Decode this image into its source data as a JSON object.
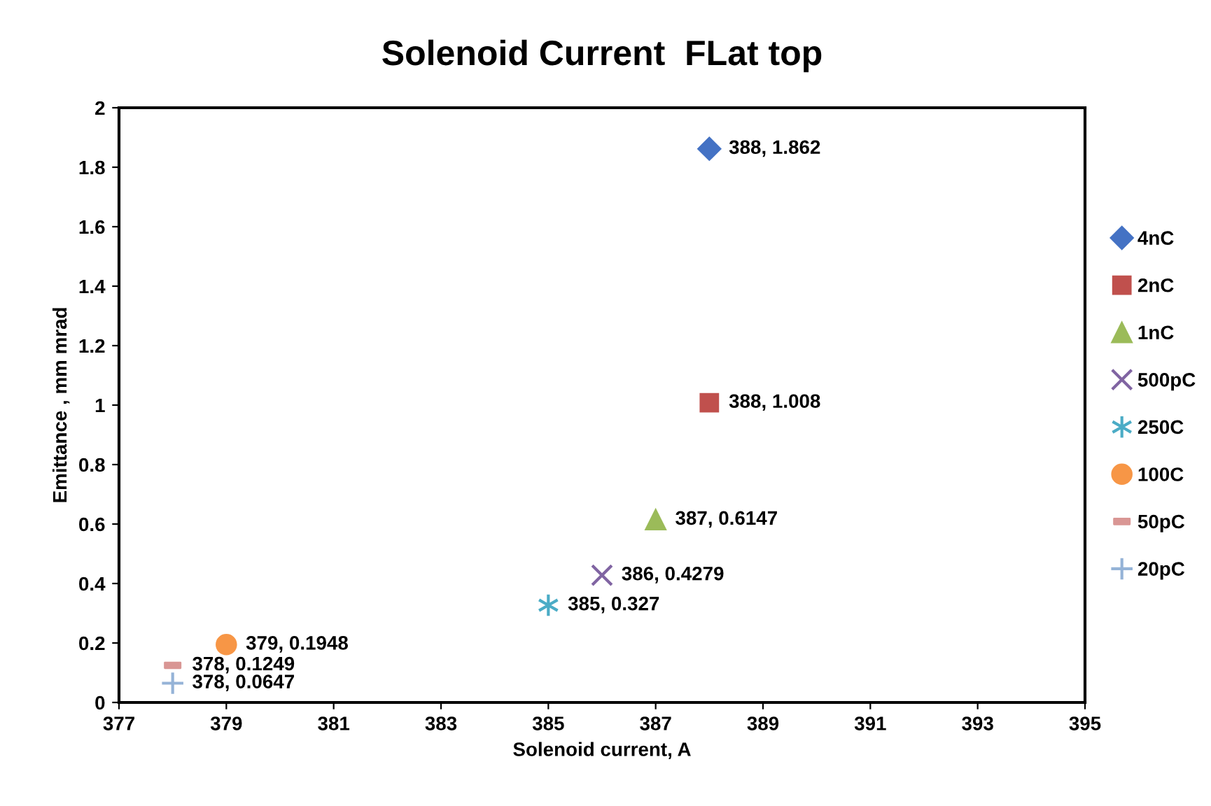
{
  "chart_data": {
    "type": "scatter",
    "title": "Solenoid Current  FLat top",
    "xlabel": "Solenoid current, A",
    "ylabel": "Emittance , mm mrad",
    "xlim": [
      377,
      395
    ],
    "xticks": [
      377,
      379,
      381,
      383,
      385,
      387,
      389,
      391,
      393,
      395
    ],
    "ylim": [
      0,
      2
    ],
    "yticks": [
      0,
      0.2,
      0.4,
      0.6,
      0.8,
      1,
      1.2,
      1.4,
      1.6,
      1.8,
      2
    ],
    "grid": false,
    "legend": "right",
    "series": [
      {
        "name": "4nC",
        "color": "#4472c4",
        "marker": "diamond",
        "x": [
          388
        ],
        "values": [
          1.862
        ],
        "value_labels": [
          "388, 1.862"
        ]
      },
      {
        "name": "2nC",
        "color": "#c0504d",
        "marker": "square",
        "x": [
          388
        ],
        "values": [
          1.008
        ],
        "value_labels": [
          "388, 1.008"
        ]
      },
      {
        "name": "1nC",
        "color": "#9bbb59",
        "marker": "triangle",
        "x": [
          387
        ],
        "values": [
          0.6147
        ],
        "value_labels": [
          "387, 0.6147"
        ]
      },
      {
        "name": "500pC",
        "color": "#8064a2",
        "marker": "cross",
        "x": [
          386
        ],
        "values": [
          0.4279
        ],
        "value_labels": [
          "386, 0.4279"
        ]
      },
      {
        "name": "250C",
        "color": "#4bacc6",
        "x": [
          385
        ],
        "values": [
          0.327
        ],
        "value_labels": [
          "385, 0.327"
        ]
      },
      {
        "name": "100C",
        "color": "#f79646",
        "marker": "circle",
        "x": [
          379
        ],
        "values": [
          0.1948
        ],
        "value_labels": [
          "379, 0.1948"
        ]
      },
      {
        "name": "50pC",
        "color": "#d99694",
        "x": [
          378
        ],
        "values": [
          0.1249
        ],
        "value_labels": [
          "378, 0.1249"
        ]
      },
      {
        "name": "20pC",
        "color": "#95b3d7",
        "x": [
          378
        ],
        "values": [
          0.0647
        ],
        "value_labels": [
          "378, 0.0647"
        ]
      }
    ]
  }
}
